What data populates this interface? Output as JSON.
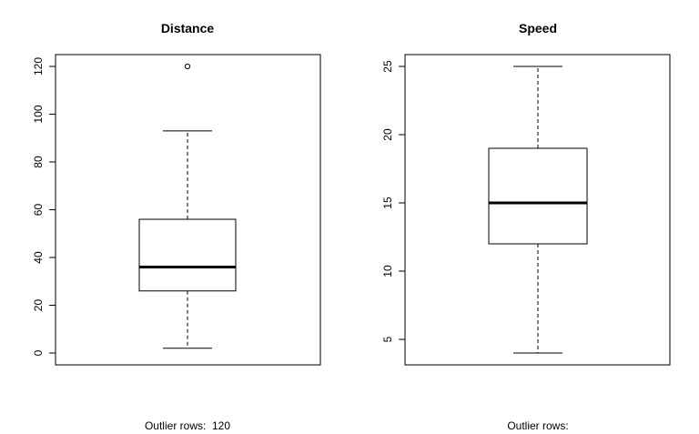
{
  "chart_data": [
    {
      "type": "box",
      "title": "Distance",
      "ylim": [
        0,
        120
      ],
      "yticks": [
        0,
        20,
        40,
        60,
        80,
        100,
        120
      ],
      "box": {
        "whisker_low": 2,
        "q1": 26,
        "median": 36,
        "q3": 56,
        "whisker_high": 93
      },
      "outliers": [
        120
      ],
      "caption": "Outlier rows:  120"
    },
    {
      "type": "box",
      "title": "Speed",
      "ylim": [
        4,
        25
      ],
      "yticks": [
        5,
        10,
        15,
        20,
        25
      ],
      "box": {
        "whisker_low": 4,
        "q1": 12,
        "median": 15,
        "q3": 19,
        "whisker_high": 25
      },
      "outliers": [],
      "caption": "Outlier rows:"
    }
  ]
}
